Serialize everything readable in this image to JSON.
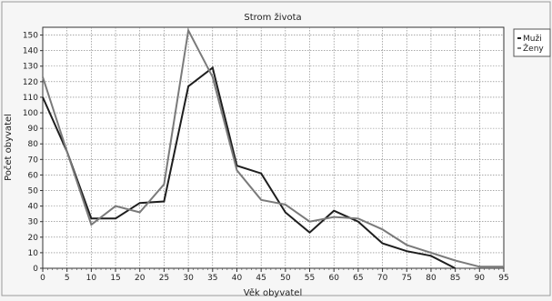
{
  "chart_data": {
    "type": "line",
    "title": "Strom života",
    "xlabel": "Věk obyvatel",
    "ylabel": "Počet obyvatel",
    "x": [
      0,
      5,
      10,
      15,
      20,
      25,
      30,
      35,
      40,
      45,
      50,
      55,
      60,
      65,
      70,
      75,
      80,
      85,
      90,
      95
    ],
    "x_ticks": [
      0,
      5,
      10,
      15,
      20,
      25,
      30,
      35,
      40,
      45,
      50,
      55,
      60,
      65,
      70,
      75,
      80,
      85,
      90,
      95
    ],
    "y_ticks": [
      0,
      10,
      20,
      30,
      40,
      50,
      60,
      70,
      80,
      90,
      100,
      110,
      120,
      130,
      140,
      150
    ],
    "xlim": [
      0,
      95
    ],
    "ylim": [
      0,
      155
    ],
    "grid": true,
    "legend": "top-right, outside",
    "series": [
      {
        "name": "Muži",
        "color": "#1e1e1e",
        "values": [
          110,
          75,
          32,
          32,
          42,
          43,
          117,
          129,
          66,
          61,
          36,
          23,
          37,
          30,
          16,
          11,
          8,
          0,
          null,
          null
        ]
      },
      {
        "name": "Ženy",
        "color": "#7a7a7a",
        "values": [
          123,
          75,
          28,
          40,
          36,
          54,
          153,
          123,
          63,
          44,
          41,
          30,
          33,
          32,
          25,
          15,
          10,
          5,
          1,
          1
        ]
      }
    ]
  }
}
